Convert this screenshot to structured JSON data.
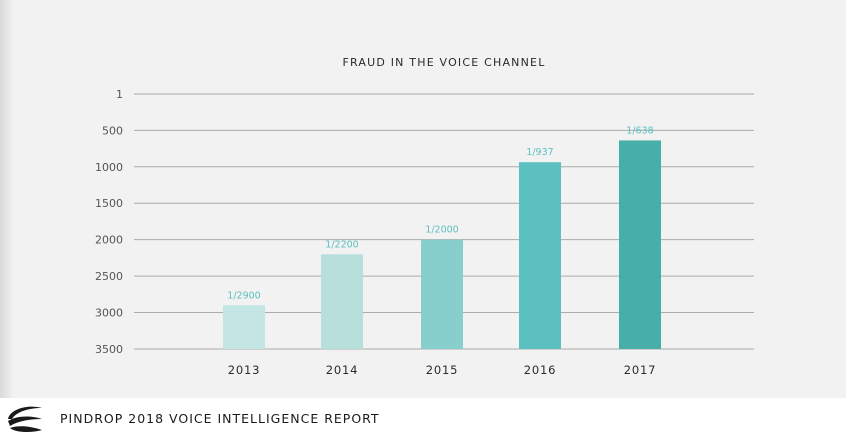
{
  "chart_data": {
    "type": "bar",
    "title": "FRAUD IN THE VOICE CHANNEL",
    "xlabel": "",
    "ylabel": "",
    "categories": [
      "2013",
      "2014",
      "2015",
      "2016",
      "2017"
    ],
    "values": [
      2900,
      2200,
      2000,
      937,
      638
    ],
    "data_labels": [
      "1/2900",
      "1/2200",
      "1/2000",
      "1/937",
      "1/638"
    ],
    "y_ticks": [
      "1",
      "500",
      "1000",
      "1500",
      "2000",
      "2500",
      "3000",
      "3500"
    ],
    "y_tick_values": [
      1,
      500,
      1000,
      1500,
      2000,
      2500,
      3000,
      3500
    ],
    "ylim": [
      1,
      3500
    ],
    "y_inverted": true,
    "grid": true,
    "bar_colors": [
      "#c3e6e4",
      "#b7e0dd",
      "#87cfcc",
      "#5bc0bf",
      "#48aea9"
    ],
    "label_color": "#5cc0c0"
  },
  "footer": {
    "text": "PINDROP 2018 VOICE INTELLIGENCE REPORT"
  }
}
